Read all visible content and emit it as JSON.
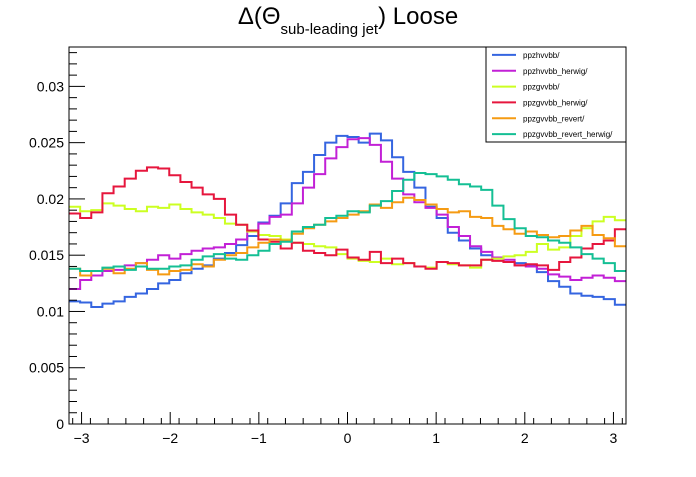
{
  "chart_data": {
    "type": "line",
    "title": {
      "prefix": "Δ(Θ",
      "subscript": "sub-leading jet",
      "suffix": ") Loose"
    },
    "xlabel": "",
    "ylabel": "",
    "xlim": [
      -3.1416,
      3.1416
    ],
    "ylim": [
      0,
      0.0335
    ],
    "grid": false,
    "legend_position": "top-right",
    "x_ticks": [
      -3,
      -2,
      -1,
      0,
      1,
      2,
      3
    ],
    "x_tick_labels": [
      "−3",
      "−2",
      "−1",
      "0",
      "1",
      "2",
      "3"
    ],
    "y_ticks": [
      0,
      0.005,
      0.01,
      0.015,
      0.02,
      0.025,
      0.03
    ],
    "y_tick_labels": [
      "0",
      "0.005",
      "0.01",
      "0.015",
      "0.02",
      "0.025",
      "0.03"
    ],
    "bins": 50,
    "series": [
      {
        "name": "ppzhvvbb/",
        "color": "#3565e0",
        "values": [
          0.0109,
          0.0108,
          0.0104,
          0.0107,
          0.0109,
          0.0113,
          0.0116,
          0.012,
          0.0125,
          0.0128,
          0.0134,
          0.0138,
          0.0141,
          0.0147,
          0.0152,
          0.0159,
          0.0167,
          0.0179,
          0.0185,
          0.0196,
          0.0214,
          0.0224,
          0.0239,
          0.025,
          0.0256,
          0.0255,
          0.025,
          0.0258,
          0.0252,
          0.0237,
          0.0224,
          0.021,
          0.0193,
          0.0183,
          0.017,
          0.0163,
          0.0156,
          0.015,
          0.0147,
          0.0144,
          0.0143,
          0.0141,
          0.0135,
          0.0127,
          0.0122,
          0.0116,
          0.0114,
          0.0113,
          0.0111,
          0.0106
        ]
      },
      {
        "name": "ppzhvvbb_herwig/",
        "color": "#c220d6",
        "values": [
          0.012,
          0.0128,
          0.0132,
          0.0136,
          0.0137,
          0.0141,
          0.0143,
          0.0146,
          0.015,
          0.0147,
          0.0151,
          0.0154,
          0.0156,
          0.0157,
          0.016,
          0.0164,
          0.0172,
          0.0178,
          0.0184,
          0.0186,
          0.0196,
          0.021,
          0.0222,
          0.0236,
          0.0246,
          0.0253,
          0.0254,
          0.0248,
          0.0233,
          0.0218,
          0.0204,
          0.0197,
          0.0192,
          0.0186,
          0.0175,
          0.0167,
          0.0158,
          0.0153,
          0.0148,
          0.0146,
          0.0141,
          0.014,
          0.0138,
          0.0133,
          0.0131,
          0.0128,
          0.013,
          0.0132,
          0.013,
          0.0127
        ]
      },
      {
        "name": "ppzgvvbb/",
        "color": "#ccff22",
        "values": [
          0.0193,
          0.0189,
          0.019,
          0.0196,
          0.0194,
          0.0191,
          0.0189,
          0.0193,
          0.0192,
          0.0195,
          0.0191,
          0.0188,
          0.0186,
          0.0183,
          0.0178,
          0.0177,
          0.0171,
          0.0168,
          0.0167,
          0.0164,
          0.0161,
          0.016,
          0.0158,
          0.0157,
          0.0151,
          0.0147,
          0.0145,
          0.0144,
          0.0147,
          0.0142,
          0.0143,
          0.014,
          0.0139,
          0.0144,
          0.0142,
          0.0141,
          0.0139,
          0.0146,
          0.0147,
          0.0149,
          0.015,
          0.0153,
          0.016,
          0.0155,
          0.0157,
          0.0167,
          0.0174,
          0.018,
          0.0184,
          0.0181
        ]
      },
      {
        "name": "ppzgvvbb_herwig/",
        "color": "#e6163d",
        "values": [
          0.0187,
          0.0183,
          0.0188,
          0.0205,
          0.0211,
          0.0218,
          0.0225,
          0.0228,
          0.0227,
          0.0221,
          0.0215,
          0.021,
          0.0204,
          0.02,
          0.0186,
          0.0177,
          0.0172,
          0.0164,
          0.0162,
          0.0156,
          0.0161,
          0.0154,
          0.0152,
          0.015,
          0.0155,
          0.0148,
          0.0146,
          0.0153,
          0.0143,
          0.0147,
          0.0143,
          0.014,
          0.0138,
          0.0144,
          0.0143,
          0.0141,
          0.0141,
          0.0146,
          0.0145,
          0.0144,
          0.0141,
          0.0142,
          0.0141,
          0.0137,
          0.0144,
          0.0148,
          0.0156,
          0.016,
          0.0163,
          0.0173
        ]
      },
      {
        "name": "ppzgvvbb_revert/",
        "color": "#f59b13",
        "values": [
          0.0138,
          0.0132,
          0.0136,
          0.0138,
          0.0134,
          0.0138,
          0.0143,
          0.0137,
          0.0133,
          0.0136,
          0.0137,
          0.0142,
          0.014,
          0.0146,
          0.015,
          0.0152,
          0.0157,
          0.0161,
          0.0164,
          0.0163,
          0.0169,
          0.0174,
          0.0177,
          0.018,
          0.0183,
          0.0186,
          0.0189,
          0.0195,
          0.0192,
          0.0197,
          0.0201,
          0.0199,
          0.0195,
          0.0191,
          0.0188,
          0.0189,
          0.0184,
          0.0183,
          0.0176,
          0.0173,
          0.0169,
          0.0171,
          0.0168,
          0.0166,
          0.0167,
          0.0172,
          0.0176,
          0.0168,
          0.0165,
          0.0158
        ]
      },
      {
        "name": "ppzgvvbb_revert_herwig/",
        "color": "#14bf94",
        "values": [
          0.0138,
          0.0136,
          0.0136,
          0.0139,
          0.014,
          0.0137,
          0.014,
          0.0138,
          0.0138,
          0.014,
          0.0141,
          0.0146,
          0.0149,
          0.0151,
          0.0147,
          0.0146,
          0.015,
          0.0154,
          0.016,
          0.0162,
          0.0171,
          0.0175,
          0.0177,
          0.0183,
          0.0185,
          0.0189,
          0.0188,
          0.0194,
          0.0198,
          0.0207,
          0.0217,
          0.0223,
          0.0222,
          0.022,
          0.0217,
          0.0213,
          0.0211,
          0.0208,
          0.0194,
          0.0182,
          0.0174,
          0.0167,
          0.0166,
          0.0163,
          0.0161,
          0.0157,
          0.0151,
          0.0147,
          0.0143,
          0.0136
        ]
      }
    ]
  }
}
